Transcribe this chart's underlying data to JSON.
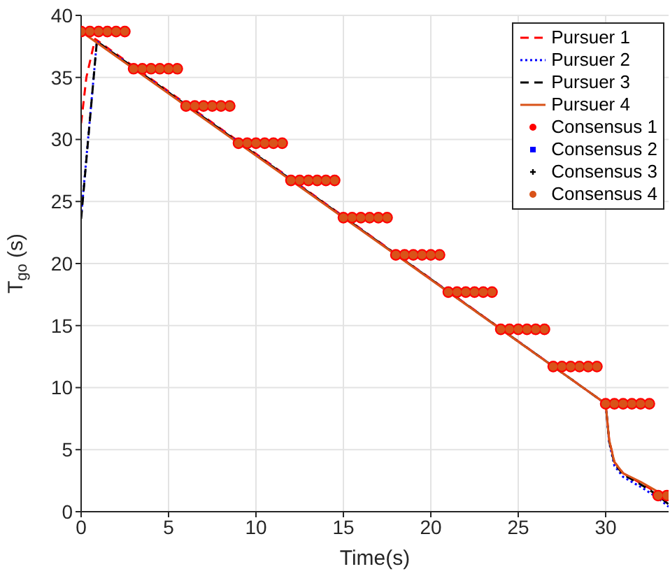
{
  "chart_data": {
    "type": "line",
    "xlabel": "Time(s)",
    "ylabel": "T$_{go}$ (s)",
    "xlim": [
      0,
      33.6
    ],
    "xticks": [
      0,
      5,
      10,
      15,
      20,
      25,
      30
    ],
    "ylim": [
      0,
      40
    ],
    "yticks": [
      0,
      5,
      10,
      15,
      20,
      25,
      30,
      35,
      40
    ],
    "grid": true,
    "legend": "top right",
    "x": [
      0,
      0.5,
      1,
      1.5,
      2,
      2.5,
      3,
      3.5,
      4,
      4.5,
      5,
      5.5,
      6,
      6.5,
      7,
      7.5,
      8,
      8.5,
      9,
      9.5,
      10,
      10.5,
      11,
      11.5,
      12,
      12.5,
      13,
      13.5,
      14,
      14.5,
      15,
      15.5,
      16,
      16.5,
      17,
      17.5,
      18,
      18.5,
      19,
      19.5,
      20,
      20.5,
      21,
      21.5,
      22,
      22.5,
      23,
      23.5,
      24,
      24.5,
      25,
      25.5,
      26,
      26.5,
      27,
      27.5,
      28,
      28.5,
      29,
      29.5,
      30,
      30.5,
      31,
      31.5,
      32,
      32.5,
      33,
      33.5
    ],
    "series": [
      {
        "name": "Pursuer 1",
        "color": "#ff0000",
        "line_style": "dashed",
        "x": [
          0,
          0.3,
          0.8,
          30,
          30.2,
          30.5,
          31,
          32,
          33,
          33.6
        ],
        "values": [
          31.3,
          35,
          38.1,
          8.7,
          5.8,
          4.0,
          3.1,
          2.3,
          1.5,
          0.9
        ]
      },
      {
        "name": "Pursuer 2",
        "color": "#0000ff",
        "line_style": "dotted",
        "x": [
          0,
          0.9,
          30,
          30.2,
          30.5,
          31,
          32,
          33,
          33.6
        ],
        "values": [
          23.8,
          37.9,
          8.7,
          5.6,
          3.7,
          2.8,
          2.0,
          1.1,
          0.4
        ]
      },
      {
        "name": "Pursuer 3",
        "color": "#000000",
        "line_style": "dashed",
        "x": [
          0,
          0.9,
          30,
          30.2,
          30.5,
          31,
          32,
          33,
          33.6
        ],
        "values": [
          23.6,
          37.9,
          8.7,
          5.7,
          3.9,
          3.0,
          2.2,
          1.3,
          0.6
        ]
      },
      {
        "name": "Pursuer 4",
        "color": "#d95319",
        "line_style": "solid",
        "x": [
          0,
          30,
          30.2,
          30.5,
          31,
          32,
          33,
          33.6
        ],
        "values": [
          38.7,
          8.7,
          5.8,
          4.0,
          3.1,
          2.4,
          1.6,
          1.0
        ]
      },
      {
        "name": "Consensus 1",
        "type": "scatter",
        "color": "#ff0000",
        "marker": "circle",
        "values": [
          38.7,
          38.7,
          38.7,
          38.7,
          38.7,
          38.7,
          35.7,
          35.7,
          35.7,
          35.7,
          35.7,
          35.7,
          32.7,
          32.7,
          32.7,
          32.7,
          32.7,
          32.7,
          29.7,
          29.7,
          29.7,
          29.7,
          29.7,
          29.7,
          26.7,
          26.7,
          26.7,
          26.7,
          26.7,
          26.7,
          23.7,
          23.7,
          23.7,
          23.7,
          23.7,
          23.7,
          20.7,
          20.7,
          20.7,
          20.7,
          20.7,
          20.7,
          17.7,
          17.7,
          17.7,
          17.7,
          17.7,
          17.7,
          14.7,
          14.7,
          14.7,
          14.7,
          14.7,
          14.7,
          11.7,
          11.7,
          11.7,
          11.7,
          11.7,
          11.7,
          8.7,
          8.7,
          8.7,
          8.7,
          8.7,
          8.7,
          1.3,
          1.3
        ]
      },
      {
        "name": "Consensus 2",
        "type": "scatter",
        "color": "#0000ff",
        "marker": "square",
        "values": [
          null,
          null,
          null,
          null,
          null,
          null,
          null,
          null,
          null,
          null,
          null,
          null,
          null,
          null,
          null,
          null,
          null,
          null,
          null,
          null,
          null,
          null,
          null,
          null,
          null,
          null,
          null,
          null,
          null,
          null,
          null,
          null,
          null,
          null,
          null,
          null,
          null,
          null,
          null,
          null,
          null,
          null,
          null,
          null,
          null,
          null,
          null,
          null,
          null,
          null,
          null,
          null,
          null,
          null,
          null,
          null,
          null,
          null,
          null,
          null,
          null,
          null,
          null,
          null,
          null,
          null,
          null,
          null
        ]
      },
      {
        "name": "Consensus 3",
        "type": "scatter",
        "color": "#000000",
        "marker": "cross",
        "values": [
          null,
          null,
          null,
          null,
          null,
          null,
          null,
          null,
          null,
          null,
          null,
          null,
          null,
          null,
          null,
          null,
          null,
          null,
          null,
          null,
          null,
          null,
          null,
          null,
          null,
          null,
          null,
          null,
          null,
          null,
          null,
          null,
          null,
          null,
          null,
          null,
          null,
          null,
          null,
          null,
          null,
          null,
          null,
          null,
          null,
          null,
          null,
          null,
          null,
          null,
          null,
          null,
          null,
          null,
          null,
          null,
          null,
          null,
          null,
          null,
          null,
          null,
          null,
          null,
          null,
          null,
          null,
          null
        ]
      },
      {
        "name": "Consensus 4",
        "type": "scatter",
        "color": "#d95319",
        "marker": "circle",
        "values": [
          38.7,
          38.7,
          38.7,
          38.7,
          38.7,
          38.7,
          35.7,
          35.7,
          35.7,
          35.7,
          35.7,
          35.7,
          32.7,
          32.7,
          32.7,
          32.7,
          32.7,
          32.7,
          29.7,
          29.7,
          29.7,
          29.7,
          29.7,
          29.7,
          26.7,
          26.7,
          26.7,
          26.7,
          26.7,
          26.7,
          23.7,
          23.7,
          23.7,
          23.7,
          23.7,
          23.7,
          20.7,
          20.7,
          20.7,
          20.7,
          20.7,
          20.7,
          17.7,
          17.7,
          17.7,
          17.7,
          17.7,
          17.7,
          14.7,
          14.7,
          14.7,
          14.7,
          14.7,
          14.7,
          11.7,
          11.7,
          11.7,
          11.7,
          11.7,
          11.7,
          8.7,
          8.7,
          8.7,
          8.7,
          8.7,
          8.7,
          1.3,
          1.3
        ]
      }
    ]
  }
}
